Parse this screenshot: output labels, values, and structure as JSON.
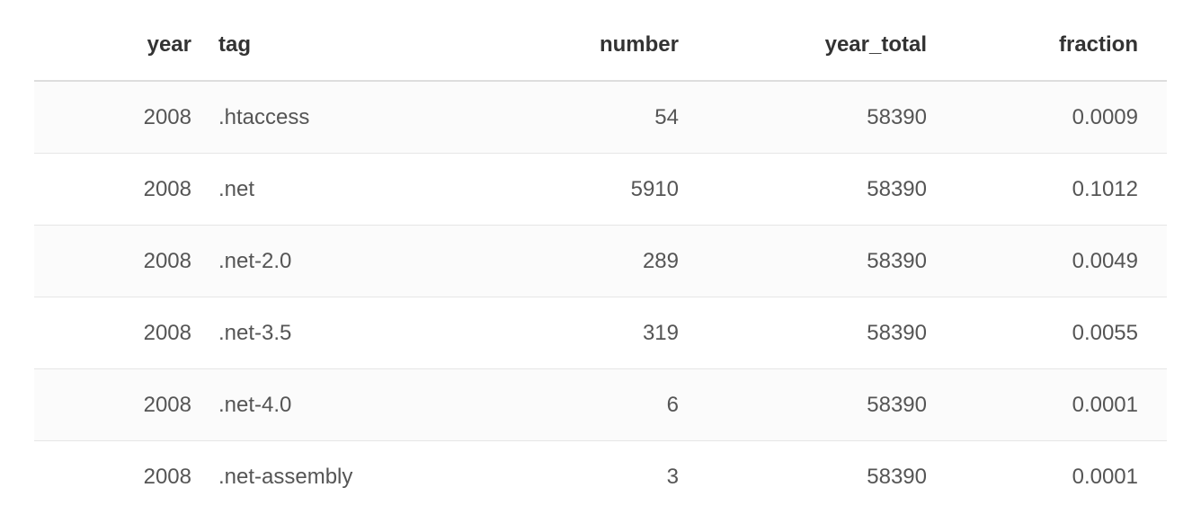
{
  "table": {
    "headers": {
      "year": "year",
      "tag": "tag",
      "number": "number",
      "year_total": "year_total",
      "fraction": "fraction"
    },
    "rows": [
      {
        "year": "2008",
        "tag": ".htaccess",
        "number": "54",
        "year_total": "58390",
        "fraction": "0.0009"
      },
      {
        "year": "2008",
        "tag": ".net",
        "number": "5910",
        "year_total": "58390",
        "fraction": "0.1012"
      },
      {
        "year": "2008",
        "tag": ".net-2.0",
        "number": "289",
        "year_total": "58390",
        "fraction": "0.0049"
      },
      {
        "year": "2008",
        "tag": ".net-3.5",
        "number": "319",
        "year_total": "58390",
        "fraction": "0.0055"
      },
      {
        "year": "2008",
        "tag": ".net-4.0",
        "number": "6",
        "year_total": "58390",
        "fraction": "0.0001"
      },
      {
        "year": "2008",
        "tag": ".net-assembly",
        "number": "3",
        "year_total": "58390",
        "fraction": "0.0001"
      }
    ]
  },
  "colors": {
    "header_text": "#333333",
    "cell_text": "#555555",
    "stripe": "#fbfbfb",
    "header_rule": "#dddddd",
    "row_rule": "#e6e6e6"
  }
}
